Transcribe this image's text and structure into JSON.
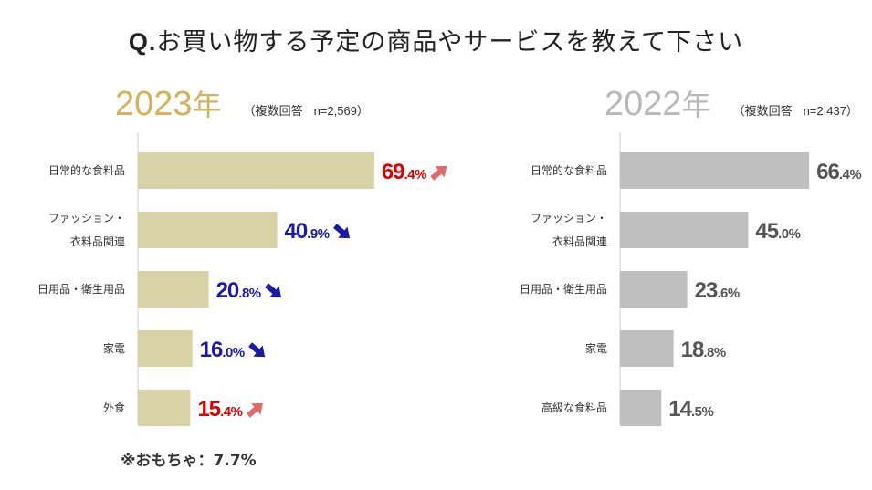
{
  "title": {
    "prefix": "Q.",
    "text": "お買い物する予定の商品やサービスを教えて下さい"
  },
  "colors": {
    "bar_2023": "#d8d2a6",
    "bar_2022": "#bfbfbf",
    "up": "#e00000",
    "down": "#1a1aa8",
    "neutral": "#555555",
    "arrow_up": "#e06a6a",
    "arrow_down": "#1a1aa8",
    "year_2023": "#d2b25a",
    "year_2022": "#b8b8b8",
    "axis": "#cfcfcf"
  },
  "chart_data": [
    {
      "type": "bar",
      "orientation": "horizontal",
      "title": "2023",
      "year_number": "2023",
      "year_suffix": "年",
      "note": "（複数回答",
      "sample": "n=2,569）",
      "categories": [
        {
          "label": [
            "日常的な食料品"
          ]
        },
        {
          "label": [
            "ファッション・",
            "衣料品関連"
          ]
        },
        {
          "label": [
            "日用品・衛生用品"
          ]
        },
        {
          "label": [
            "家電"
          ]
        },
        {
          "label": [
            "外食"
          ]
        }
      ],
      "values": [
        69.4,
        40.9,
        20.8,
        16.0,
        15.4
      ],
      "value_int": [
        "69",
        "40",
        "20",
        "16",
        "15"
      ],
      "value_dec": [
        ".4%",
        ".9%",
        ".8%",
        ".0%",
        ".4%"
      ],
      "trend": [
        "up",
        "down",
        "down",
        "down",
        "up"
      ],
      "xlim": [
        0,
        100
      ]
    },
    {
      "type": "bar",
      "orientation": "horizontal",
      "title": "2022",
      "year_number": "2022",
      "year_suffix": "年",
      "note": "（複数回答",
      "sample": "n=2,437）",
      "categories": [
        {
          "label": [
            "日常的な食料品"
          ]
        },
        {
          "label": [
            "ファッション・",
            "衣料品関連"
          ]
        },
        {
          "label": [
            "日用品・衛生用品"
          ]
        },
        {
          "label": [
            "家電"
          ]
        },
        {
          "label": [
            "高級な食料品"
          ]
        }
      ],
      "values": [
        66.4,
        45.0,
        23.6,
        18.8,
        14.5
      ],
      "value_int": [
        "66",
        "45",
        "23",
        "18",
        "14"
      ],
      "value_dec": [
        ".4%",
        ".0%",
        ".6%",
        ".8%",
        ".5%"
      ],
      "trend": [
        "neutral",
        "neutral",
        "neutral",
        "neutral",
        "neutral"
      ],
      "xlim": [
        0,
        100
      ]
    }
  ],
  "footnote": "※おもちゃ：7.7%"
}
